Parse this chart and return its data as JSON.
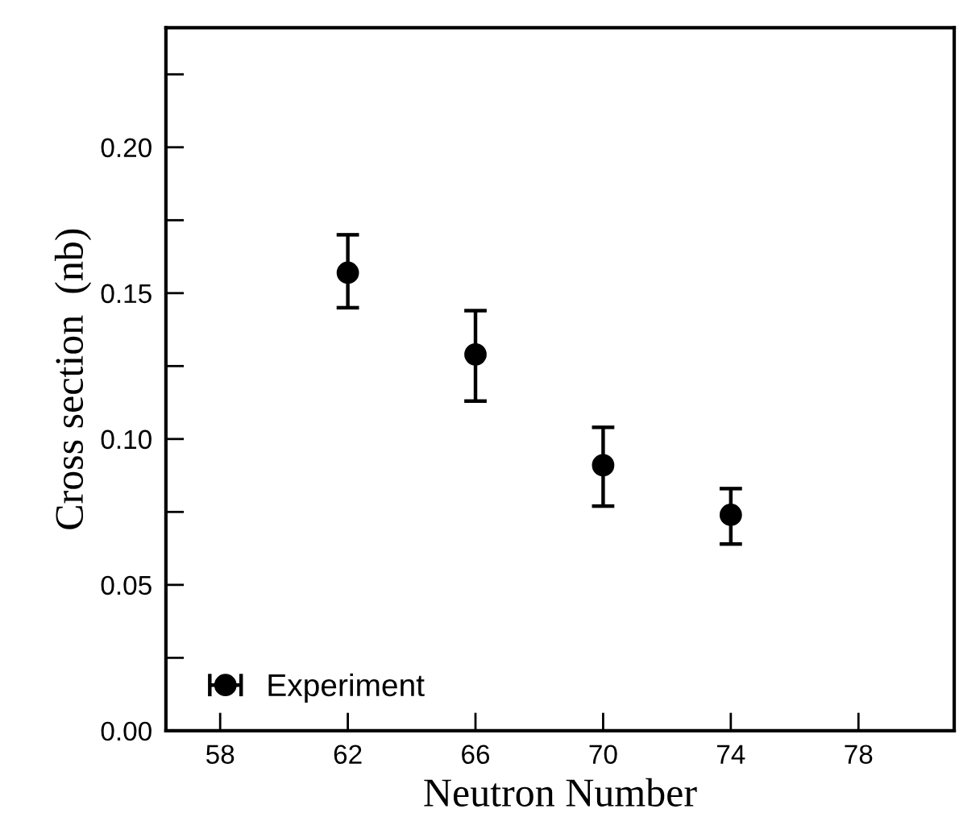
{
  "chart_data": {
    "type": "scatter",
    "xlabel": "Neutron Number",
    "ylabel": "Cross section  (nb)",
    "x": [
      62,
      66,
      70,
      74
    ],
    "series": [
      {
        "name": "Experiment",
        "color": "#000000",
        "values": [
          0.157,
          0.129,
          0.091,
          0.074
        ],
        "errors": [
          [
            0.145,
            0.17
          ],
          [
            0.113,
            0.144
          ],
          [
            0.077,
            0.104
          ],
          [
            0.064,
            0.083
          ]
        ]
      }
    ],
    "marker": "circle",
    "legend": "bottom left",
    "grid": false,
    "xlim": [
      56.3,
      81
    ],
    "xticks": [
      58,
      62,
      66,
      70,
      74,
      78
    ],
    "ylim": [
      0,
      0.241
    ],
    "yticks": [
      {
        "value": 0,
        "label": "0.00"
      },
      {
        "value": 0.05,
        "label": "0.05"
      },
      {
        "value": 0.1,
        "label": "0.10"
      },
      {
        "value": 0.15,
        "label": "0.15"
      },
      {
        "value": 0.2,
        "label": "0.20"
      }
    ]
  }
}
